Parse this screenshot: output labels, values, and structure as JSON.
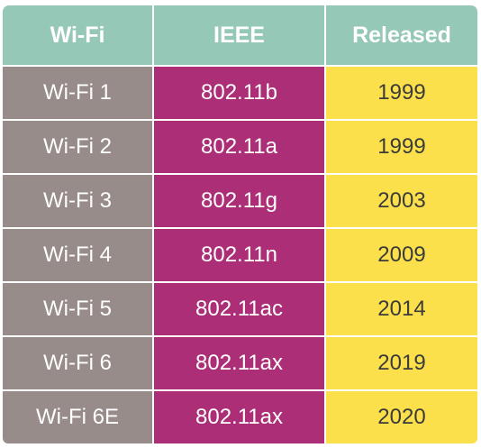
{
  "table": {
    "headers": [
      "Wi-Fi",
      "IEEE",
      "Released"
    ],
    "rows": [
      {
        "generation": "Wi-Fi 1",
        "standard": "802.11b",
        "released": "1999"
      },
      {
        "generation": "Wi-Fi 2",
        "standard": "802.11a",
        "released": "1999"
      },
      {
        "generation": "Wi-Fi 3",
        "standard": "802.11g",
        "released": "2003"
      },
      {
        "generation": "Wi-Fi 4",
        "standard": "802.11n",
        "released": "2009"
      },
      {
        "generation": "Wi-Fi 5",
        "standard": "802.11ac",
        "released": "2014"
      },
      {
        "generation": "Wi-Fi 6",
        "standard": "802.11ax",
        "released": "2019"
      },
      {
        "generation": "Wi-Fi 6E",
        "standard": "802.11ax",
        "released": "2020"
      }
    ]
  },
  "colors": {
    "header_bg": "#95c8b7",
    "generation_col_bg": "#988c8a",
    "standard_col_bg": "#ac2e77",
    "released_col_bg": "#fbe04b",
    "header_text": "#ffffff",
    "released_text": "#3b3b3b"
  }
}
